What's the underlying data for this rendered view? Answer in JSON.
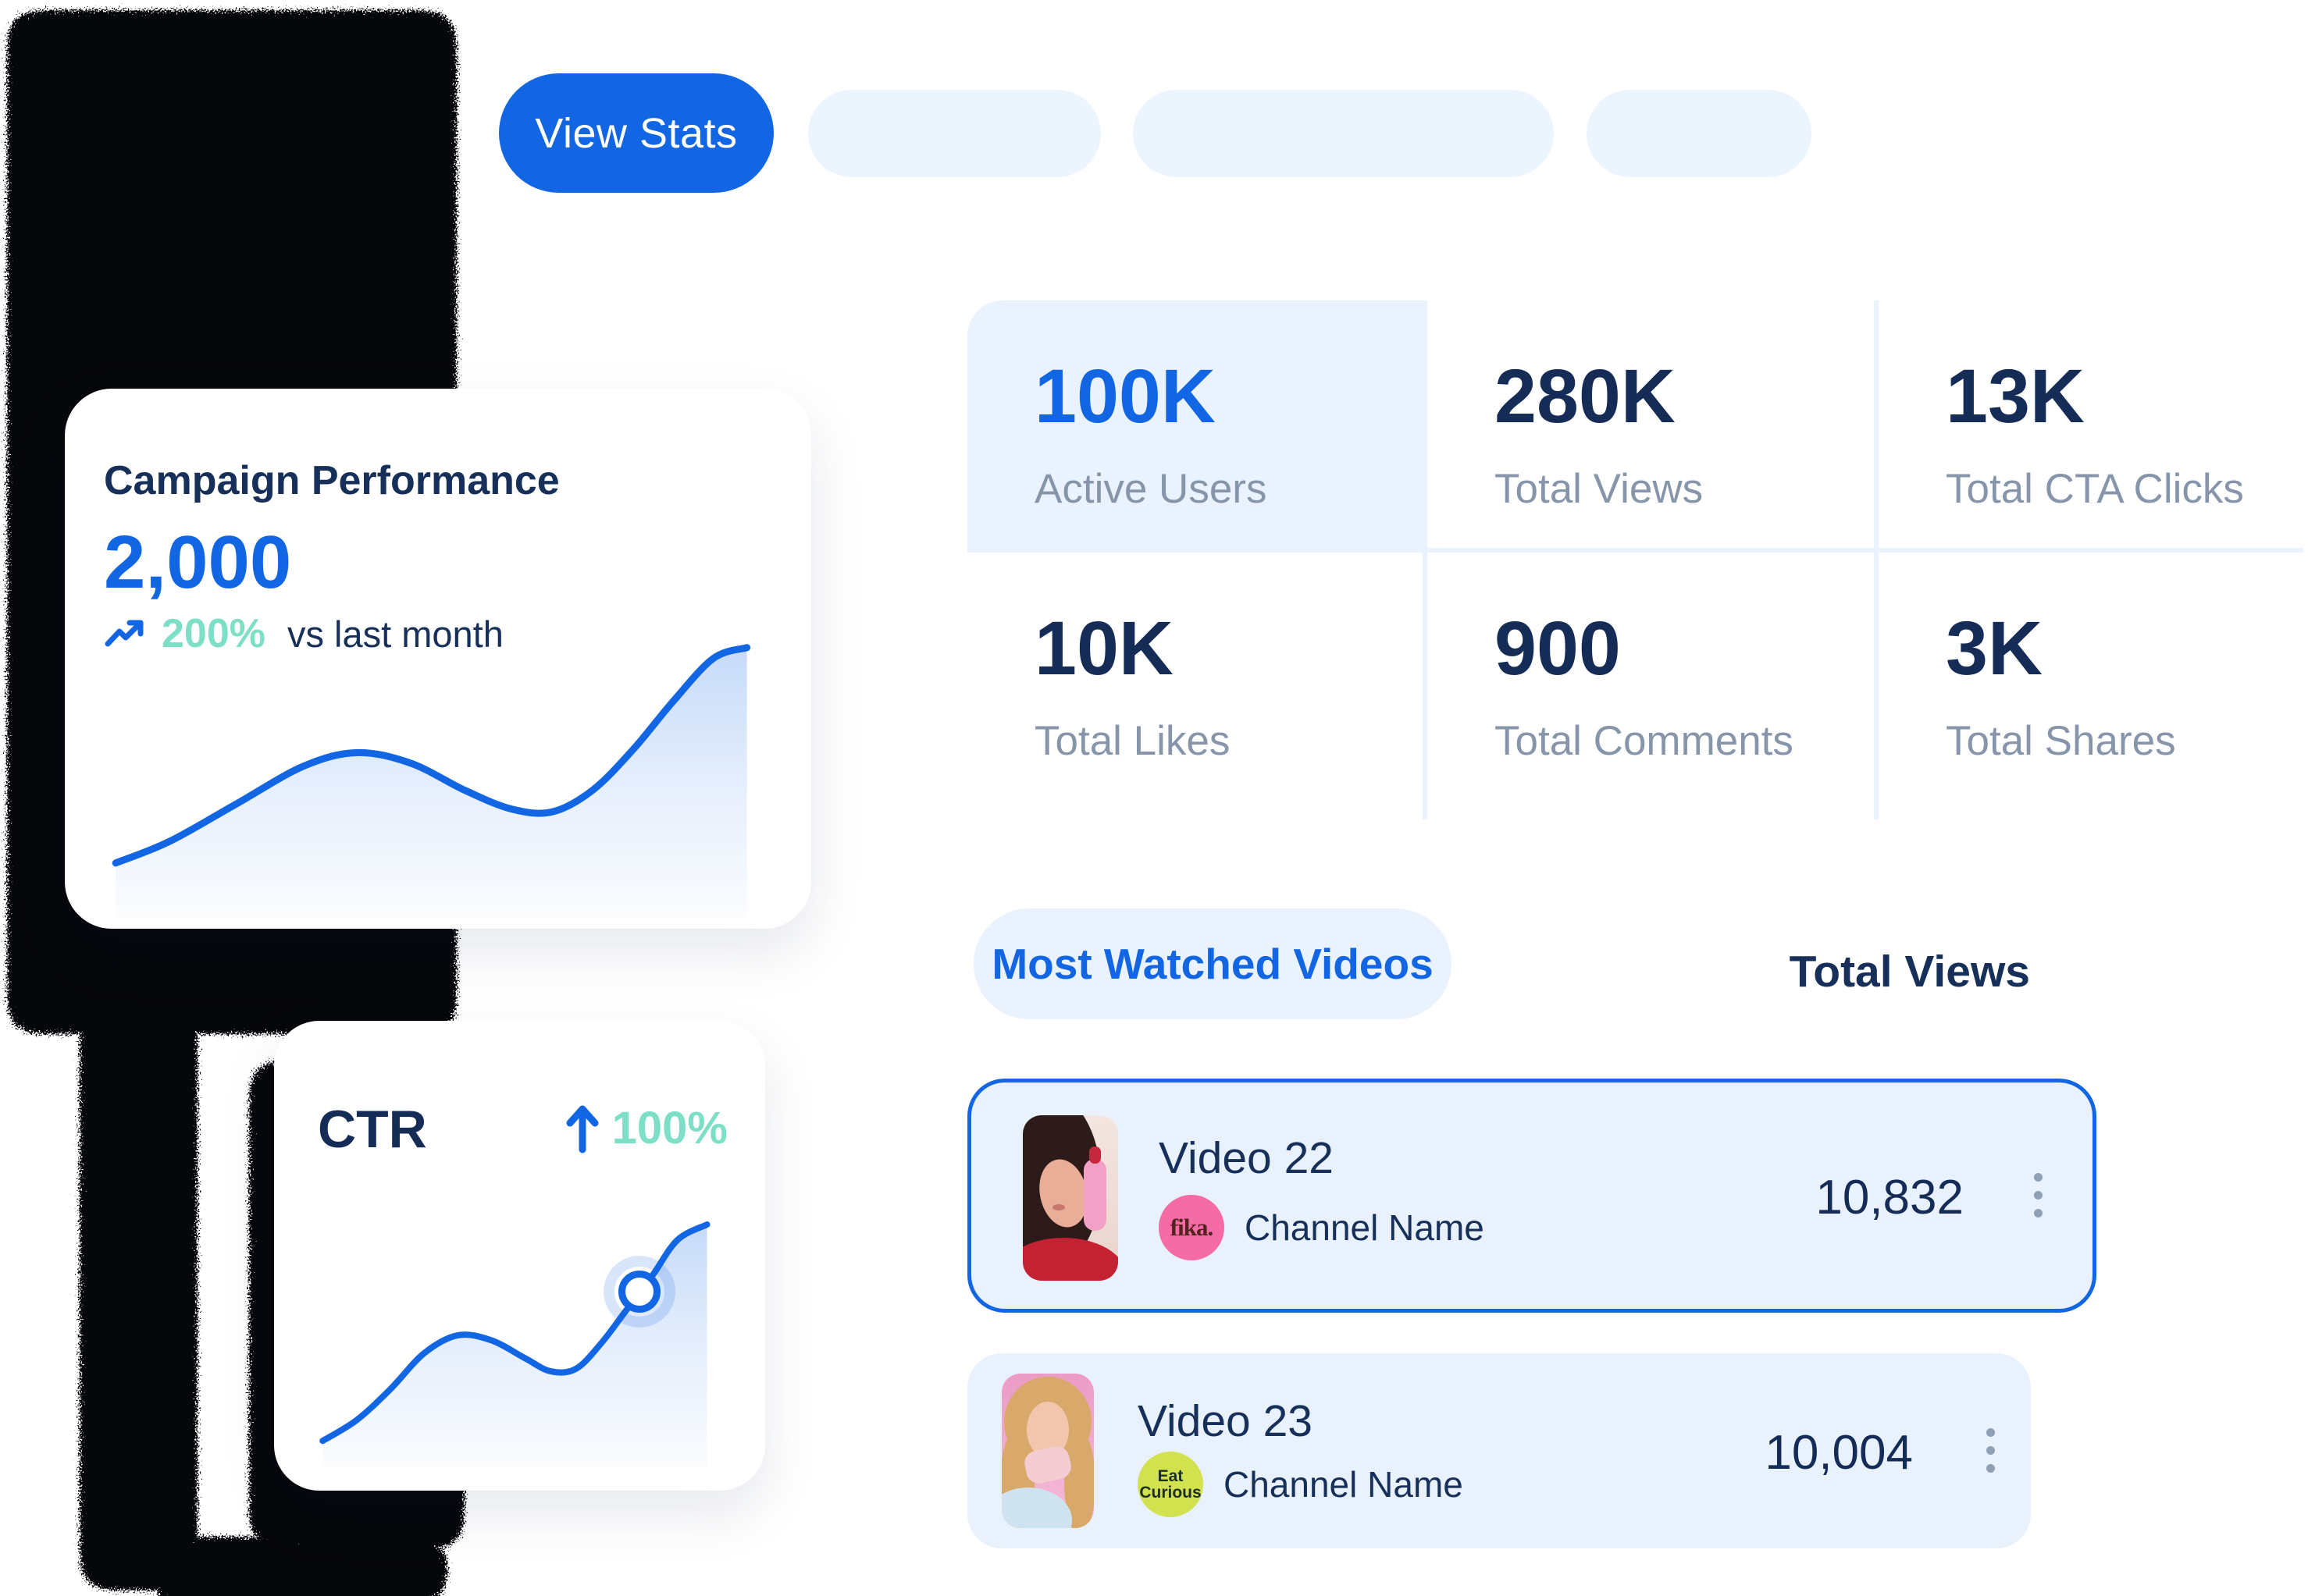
{
  "toolbar": {
    "view_stats": "View Stats"
  },
  "campaign_card": {
    "title": "Campaign Performance",
    "value": "2,000",
    "change": "200%",
    "caption": "vs last month"
  },
  "stats": {
    "cells": [
      {
        "value": "100K",
        "label": "Active Users",
        "highlighted": true
      },
      {
        "value": "280K",
        "label": "Total Views",
        "highlighted": false
      },
      {
        "value": "13K",
        "label": "Total CTA Clicks",
        "highlighted": false
      },
      {
        "value": "10K",
        "label": "Total Likes",
        "highlighted": false
      },
      {
        "value": "900",
        "label": "Total Comments",
        "highlighted": false
      },
      {
        "value": "3K",
        "label": "Total Shares",
        "highlighted": false
      }
    ]
  },
  "ctr_card": {
    "title": "CTR",
    "change": "100%"
  },
  "videos": {
    "filter_pill": "Most Watched Videos",
    "header": "Total Views",
    "rows": [
      {
        "title": "Video 22",
        "badge": "fika.",
        "channel": "Channel Name",
        "views": "10,832",
        "selected": true
      },
      {
        "title": "Video 23",
        "badge": "Eat Curious",
        "channel": "Channel Name",
        "views": "10,004",
        "selected": false
      }
    ]
  },
  "colors": {
    "primary_blue": "#1266e3",
    "navy": "#16305a",
    "num_navy": "#142c56",
    "label_gray": "#8795ab",
    "teal": "#7cdfc6",
    "light_blue": "#e9f2fd",
    "row_blue": "#e8f1fc",
    "skeleton_blue": "#ecf5fe",
    "badge_pink": "#f46ba6",
    "badge_pink_text": "#55231f",
    "badge_lime": "#d2e24f",
    "badge_lime_text": "#1c2f22",
    "dots_gray": "#8fa0b6"
  },
  "chart_data": [
    {
      "type": "line",
      "target": "campaign",
      "title": "Campaign Performance sparkline",
      "has_axes": false,
      "grid": false,
      "legend": false,
      "line_color": "#1266e3",
      "fill": "blue gradient fading downward",
      "x_range": [
        0,
        100
      ],
      "y_range_inverted_screen": [
        0,
        100
      ],
      "points": [
        [
          2,
          84
        ],
        [
          10,
          76
        ],
        [
          20,
          62
        ],
        [
          30,
          48
        ],
        [
          38,
          43
        ],
        [
          46,
          47
        ],
        [
          54,
          57
        ],
        [
          61,
          64
        ],
        [
          67,
          65
        ],
        [
          73,
          57
        ],
        [
          79,
          42
        ],
        [
          85,
          24
        ],
        [
          91,
          8
        ],
        [
          96,
          4
        ]
      ]
    },
    {
      "type": "line",
      "target": "ctr",
      "title": "CTR sparkline",
      "has_axes": false,
      "grid": false,
      "legend": false,
      "line_color": "#1266e3",
      "fill": "blue gradient fading downward",
      "x_range": [
        0,
        100
      ],
      "y_range_inverted_screen": [
        0,
        100
      ],
      "points": [
        [
          3,
          94
        ],
        [
          11,
          86
        ],
        [
          19,
          74
        ],
        [
          27,
          60
        ],
        [
          35,
          53
        ],
        [
          43,
          55
        ],
        [
          51,
          62
        ],
        [
          57,
          67
        ],
        [
          63,
          66
        ],
        [
          69,
          56
        ],
        [
          75,
          43
        ],
        [
          81,
          30
        ],
        [
          87,
          16
        ],
        [
          94,
          10
        ]
      ],
      "marker": {
        "x": 78,
        "y": 36
      }
    }
  ]
}
